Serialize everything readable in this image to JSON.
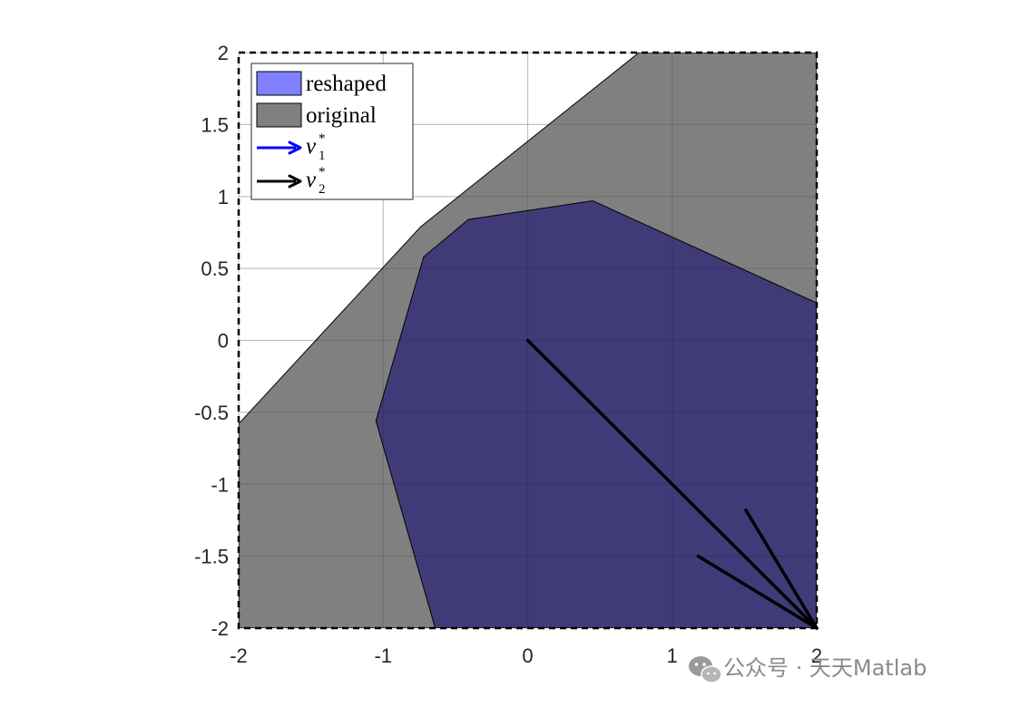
{
  "chart_data": {
    "type": "area",
    "title": "",
    "xlabel": "",
    "ylabel": "",
    "xlim": [
      -2,
      2
    ],
    "ylim": [
      -2,
      2
    ],
    "xticks": [
      -2,
      -1,
      0,
      1,
      2
    ],
    "yticks": [
      -2,
      -1.5,
      -1,
      -0.5,
      0,
      0.5,
      1,
      1.5,
      2
    ],
    "xtick_labels": [
      "-2",
      "-1",
      "0",
      "1",
      "2"
    ],
    "ytick_labels": [
      "-2",
      "-1.5",
      "-1",
      "-0.5",
      "0",
      "0.5",
      "1",
      "1.5",
      "2"
    ],
    "grid": true,
    "axes_box_style": "dashed",
    "legend_position": "top-left",
    "series": [
      {
        "name": "original",
        "kind": "polygon",
        "color": "#808080",
        "points": [
          [
            -2,
            -0.58
          ],
          [
            -0.74,
            0.79
          ],
          [
            0.77,
            2
          ],
          [
            2,
            2
          ],
          [
            2,
            -2
          ],
          [
            -2,
            -2
          ]
        ]
      },
      {
        "name": "reshaped",
        "kind": "polygon",
        "legend_color": "#8080ff",
        "rendered_color": "#403b78",
        "points": [
          [
            -0.64,
            -2
          ],
          [
            -1.05,
            -0.56
          ],
          [
            -0.72,
            0.58
          ],
          [
            -0.41,
            0.84
          ],
          [
            0.45,
            0.97
          ],
          [
            2,
            0.26
          ],
          [
            2,
            -2
          ]
        ]
      },
      {
        "name": "v_1^*",
        "kind": "arrow",
        "color": "#0000ff",
        "from": [
          0,
          0
        ],
        "to": [
          0,
          0
        ]
      },
      {
        "name": "v_2^*",
        "kind": "arrow",
        "color": "#000000",
        "from": [
          0,
          0
        ],
        "to": [
          2,
          -2
        ],
        "head_lines": [
          [
            [
              1.51,
              -1.18
            ],
            [
              2,
              -2
            ]
          ],
          [
            [
              1.18,
              -1.5
            ],
            [
              2,
              -2
            ]
          ]
        ]
      }
    ],
    "legend": [
      {
        "label": "reshaped",
        "kind": "patch",
        "color": "#8080ff"
      },
      {
        "label": "original",
        "kind": "patch",
        "color": "#808080"
      },
      {
        "label": "v",
        "sup": "*",
        "sub": "1",
        "kind": "arrow",
        "color": "#0000ff"
      },
      {
        "label": "v",
        "sup": "*",
        "sub": "2",
        "kind": "arrow",
        "color": "#000000"
      }
    ]
  },
  "watermark": {
    "icon": "wechat-icon",
    "text": "公众号 · 天天Matlab"
  }
}
